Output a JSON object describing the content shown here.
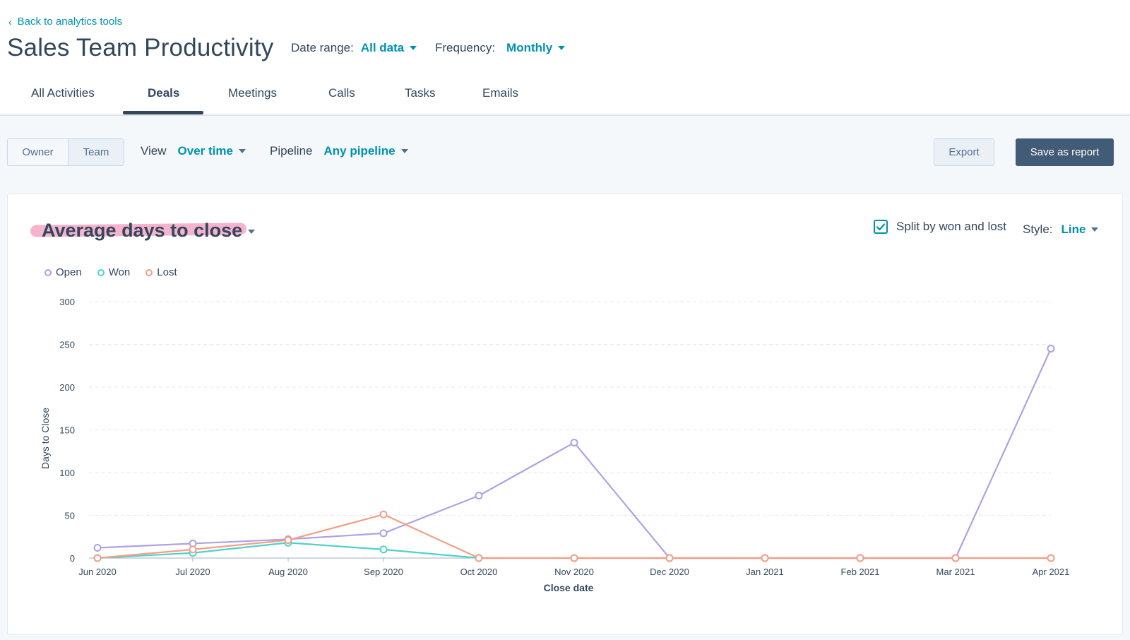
{
  "header": {
    "back_link": "Back to analytics tools",
    "title": "Sales Team Productivity",
    "date_range_label": "Date range:",
    "date_range_value": "All data",
    "frequency_label": "Frequency:",
    "frequency_value": "Monthly"
  },
  "tabs": [
    {
      "label": "All Activities"
    },
    {
      "label": "Deals",
      "active": true
    },
    {
      "label": "Meetings"
    },
    {
      "label": "Calls"
    },
    {
      "label": "Tasks"
    },
    {
      "label": "Emails"
    }
  ],
  "toolbar": {
    "owner_label": "Owner",
    "team_label": "Team",
    "view_label": "View",
    "view_value": "Over time",
    "pipeline_label": "Pipeline",
    "pipeline_value": "Any pipeline",
    "export_label": "Export",
    "save_label": "Save as report"
  },
  "card": {
    "title": "Average days to close",
    "split_label": "Split by won and lost",
    "split_checked": true,
    "style_label": "Style:",
    "style_value": "Line"
  },
  "colors": {
    "open": "#b1a0e4",
    "won": "#4fd1ce",
    "lost": "#f59e85",
    "accent": "#0091ae"
  },
  "chart_data": {
    "type": "line",
    "xlabel": "Close date",
    "ylabel": "Days to Close",
    "ylim": [
      0,
      300
    ],
    "yticks": [
      0,
      50,
      100,
      150,
      200,
      250,
      300
    ],
    "grid": true,
    "legend_position": "top-left",
    "categories": [
      "Jun 2020",
      "Jul 2020",
      "Aug 2020",
      "Sep 2020",
      "Oct 2020",
      "Nov 2020",
      "Dec 2020",
      "Jan 2021",
      "Feb 2021",
      "Mar 2021",
      "Apr 2021"
    ],
    "series": [
      {
        "name": "Open",
        "values": [
          12,
          17,
          22,
          29,
          73,
          135,
          0,
          0,
          0,
          0,
          245
        ]
      },
      {
        "name": "Won",
        "values": [
          0,
          6,
          18,
          10,
          0,
          0,
          0,
          0,
          0,
          0,
          0
        ]
      },
      {
        "name": "Lost",
        "values": [
          0,
          10,
          21,
          51,
          0,
          0,
          0,
          0,
          0,
          0,
          0
        ]
      }
    ]
  }
}
